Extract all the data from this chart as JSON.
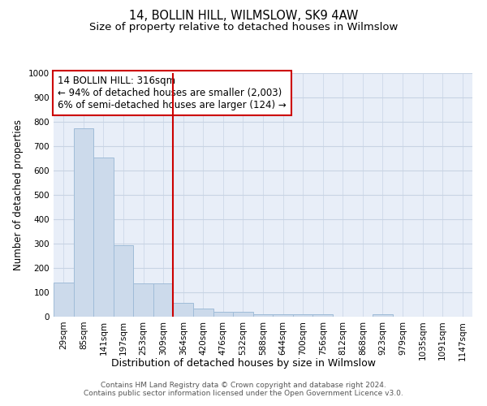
{
  "title": "14, BOLLIN HILL, WILMSLOW, SK9 4AW",
  "subtitle": "Size of property relative to detached houses in Wilmslow",
  "xlabel": "Distribution of detached houses by size in Wilmslow",
  "ylabel": "Number of detached properties",
  "categories": [
    "29sqm",
    "85sqm",
    "141sqm",
    "197sqm",
    "253sqm",
    "309sqm",
    "364sqm",
    "420sqm",
    "476sqm",
    "532sqm",
    "588sqm",
    "644sqm",
    "700sqm",
    "756sqm",
    "812sqm",
    "868sqm",
    "923sqm",
    "979sqm",
    "1035sqm",
    "1091sqm",
    "1147sqm"
  ],
  "values": [
    140,
    775,
    655,
    295,
    138,
    138,
    57,
    33,
    20,
    20,
    10,
    10,
    10,
    10,
    0,
    0,
    10,
    0,
    0,
    0,
    0
  ],
  "bar_color": "#ccdaeb",
  "bar_edgecolor": "#a0bcd8",
  "vline_x": 5.5,
  "vline_color": "#cc0000",
  "annotation_line1": "14 BOLLIN HILL: 316sqm",
  "annotation_line2": "← 94% of detached houses are smaller (2,003)",
  "annotation_line3": "6% of semi-detached houses are larger (124) →",
  "annotation_box_edgecolor": "#cc0000",
  "annotation_box_facecolor": "#ffffff",
  "ylim": [
    0,
    1000
  ],
  "yticks": [
    0,
    100,
    200,
    300,
    400,
    500,
    600,
    700,
    800,
    900,
    1000
  ],
  "grid_color": "#c8d4e4",
  "background_color": "#e8eef8",
  "footer_line1": "Contains HM Land Registry data © Crown copyright and database right 2024.",
  "footer_line2": "Contains public sector information licensed under the Open Government Licence v3.0.",
  "title_fontsize": 10.5,
  "subtitle_fontsize": 9.5,
  "xlabel_fontsize": 9,
  "ylabel_fontsize": 8.5,
  "tick_fontsize": 7.5,
  "footer_fontsize": 6.5
}
